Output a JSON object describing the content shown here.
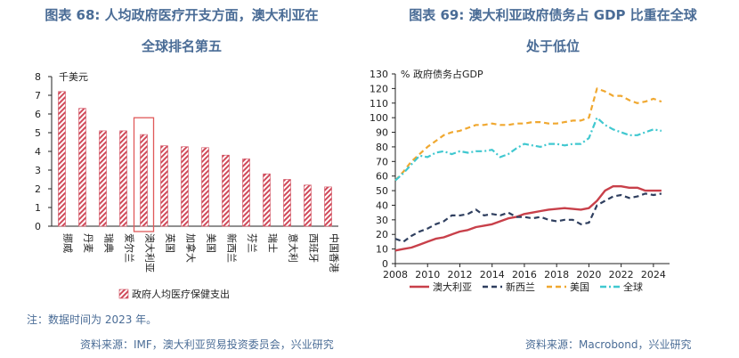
{
  "left": {
    "title_line1": "图表 68: 人均政府医疗开支方面，澳大利亚在",
    "title_line2": "全球排名第五",
    "unit": "千美元",
    "legend": "政府人均医疗保健支出",
    "note": "注：数据时间为 2023 年。",
    "source": "资料来源：IMF，澳大利亚贸易投资委员会，兴业研究"
  },
  "right": {
    "title_line1": "图表 69: 澳大利亚政府债务占 GDP 比重在全球",
    "title_line2": "处于低位",
    "unit": "% 政府债务占GDP",
    "source": "资料来源：Macrobond，兴业研究"
  },
  "colors": {
    "title": "#4a6c96",
    "bar": "#d04a5a",
    "highlight": "#e05a5a",
    "aus": "#c8404a",
    "nz": "#2f3f5f",
    "us": "#f0a830",
    "world": "#40c8d0"
  },
  "chart_data": [
    {
      "type": "bar",
      "title": "图表 68: 人均政府医疗开支方面，澳大利亚在全球排名第五",
      "ylabel": "千美元",
      "categories": [
        "挪威",
        "丹麦",
        "瑞典",
        "爱尔兰",
        "澳大利亚",
        "英国",
        "加拿大",
        "美国",
        "新西兰",
        "芬兰",
        "瑞士",
        "意大利",
        "西班牙",
        "中国香港"
      ],
      "series": [
        {
          "name": "政府人均医疗保健支出",
          "values": [
            7.2,
            6.3,
            5.1,
            5.1,
            4.9,
            4.3,
            4.25,
            4.2,
            3.8,
            3.6,
            2.8,
            2.5,
            2.2,
            2.1
          ]
        }
      ],
      "highlight": "澳大利亚",
      "ylim": [
        0,
        8
      ],
      "yticks": [
        0,
        1,
        2,
        3,
        4,
        5,
        6,
        7,
        8
      ],
      "grid": false,
      "legend": "bottom"
    },
    {
      "type": "line",
      "title": "图表 69: 澳大利亚政府债务占 GDP 比重在全球处于低位",
      "ylabel": "% 政府债务占GDP",
      "xlim": [
        2008,
        2025
      ],
      "ylim": [
        0,
        130
      ],
      "xticks": [
        2008,
        2010,
        2012,
        2014,
        2016,
        2018,
        2020,
        2022,
        2024
      ],
      "yticks": [
        0,
        10,
        20,
        30,
        40,
        50,
        60,
        70,
        80,
        90,
        100,
        110,
        120,
        130
      ],
      "grid": false,
      "legend": "bottom",
      "series": [
        {
          "name": "澳大利亚",
          "style": "solid",
          "x": [
            2008,
            2008.5,
            2009,
            2009.5,
            2010,
            2010.5,
            2011,
            2011.5,
            2012,
            2012.5,
            2013,
            2013.5,
            2014,
            2014.5,
            2015,
            2015.5,
            2016,
            2016.5,
            2017,
            2017.5,
            2018,
            2018.5,
            2019,
            2019.5,
            2020,
            2020.5,
            2021,
            2021.5,
            2022,
            2022.5,
            2023,
            2023.5,
            2024,
            2024.5
          ],
          "y": [
            9,
            10,
            11,
            13,
            15,
            17,
            18,
            20,
            22,
            23,
            25,
            26,
            27,
            29,
            31,
            32,
            34,
            35,
            36,
            37,
            37.5,
            38,
            37.5,
            37,
            38,
            43,
            50,
            53,
            53,
            52,
            52,
            50,
            50,
            50
          ]
        },
        {
          "name": "新西兰",
          "style": "dash",
          "x": [
            2008,
            2008.5,
            2009,
            2009.5,
            2010,
            2010.5,
            2011,
            2011.5,
            2012,
            2012.5,
            2013,
            2013.5,
            2014,
            2014.5,
            2015,
            2015.5,
            2016,
            2016.5,
            2017,
            2017.5,
            2018,
            2018.5,
            2019,
            2019.5,
            2020,
            2020.5,
            2021,
            2021.5,
            2022,
            2022.5,
            2023,
            2023.5,
            2024,
            2024.5
          ],
          "y": [
            17,
            15,
            19,
            22,
            24,
            27,
            29,
            33,
            33,
            34,
            37,
            33,
            34,
            33,
            35,
            32,
            32,
            31,
            32,
            30,
            29,
            30,
            30,
            27,
            28,
            40,
            43,
            46,
            47,
            45,
            46,
            48,
            47,
            48
          ]
        },
        {
          "name": "美国",
          "style": "dash",
          "x": [
            2008,
            2008.5,
            2009,
            2009.5,
            2010,
            2010.5,
            2011,
            2011.5,
            2012,
            2012.5,
            2013,
            2013.5,
            2014,
            2014.5,
            2015,
            2015.5,
            2016,
            2016.5,
            2017,
            2017.5,
            2018,
            2018.5,
            2019,
            2019.5,
            2020,
            2020.5,
            2021,
            2021.5,
            2022,
            2022.5,
            2023,
            2023.5,
            2024,
            2024.5
          ],
          "y": [
            57,
            63,
            70,
            75,
            80,
            84,
            88,
            90,
            91,
            93,
            95,
            95,
            96,
            95,
            95,
            96,
            96,
            97,
            97,
            96,
            96,
            97,
            98,
            98,
            100,
            120,
            118,
            115,
            115,
            112,
            110,
            111,
            113,
            111
          ]
        },
        {
          "name": "全球",
          "style": "dashdot",
          "x": [
            2008,
            2008.5,
            2009,
            2009.5,
            2010,
            2010.5,
            2011,
            2011.5,
            2012,
            2012.5,
            2013,
            2013.5,
            2014,
            2014.5,
            2015,
            2015.5,
            2016,
            2016.5,
            2017,
            2017.5,
            2018,
            2018.5,
            2019,
            2019.5,
            2020,
            2020.5,
            2021,
            2021.5,
            2022,
            2022.5,
            2023,
            2023.5,
            2024,
            2024.5
          ],
          "y": [
            57,
            62,
            68,
            74,
            73,
            76,
            77,
            75,
            77,
            76,
            77,
            77,
            78,
            73,
            75,
            79,
            82,
            81,
            80,
            82,
            82,
            81,
            82,
            82,
            86,
            100,
            95,
            92,
            90,
            88,
            88,
            90,
            92,
            91
          ]
        }
      ]
    }
  ]
}
